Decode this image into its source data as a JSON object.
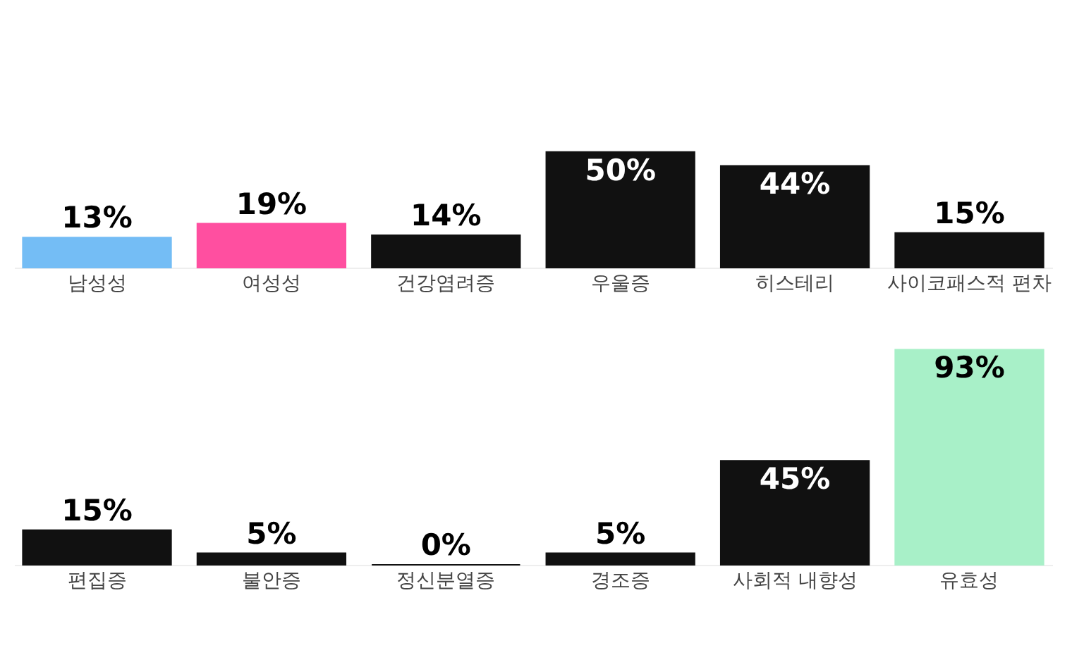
{
  "chart_data": [
    {
      "type": "bar",
      "categories": [
        "남성성",
        "여성성",
        "건강염려증",
        "우울증",
        "히스테리",
        "사이코패스적 편차"
      ],
      "values": [
        13,
        19,
        14,
        50,
        44,
        15
      ],
      "value_labels": [
        "13%",
        "19%",
        "14%",
        "50%",
        "44%",
        "15%"
      ],
      "colors": [
        "#74bdf5",
        "#ff4fa0",
        "#111111",
        "#111111",
        "#111111",
        "#111111"
      ],
      "tick_labels": "x"
    },
    {
      "type": "bar",
      "categories": [
        "편집증",
        "불안증",
        "정신분열증",
        "경조증",
        "사회적 내향성",
        "유효성"
      ],
      "values": [
        15,
        5,
        0,
        5,
        45,
        93
      ],
      "value_labels": [
        "15%",
        "5%",
        "0%",
        "5%",
        "45%",
        "93%"
      ],
      "colors": [
        "#111111",
        "#111111",
        "#111111",
        "#111111",
        "#111111",
        "#a8f0c8"
      ],
      "tick_labels": "x"
    }
  ]
}
